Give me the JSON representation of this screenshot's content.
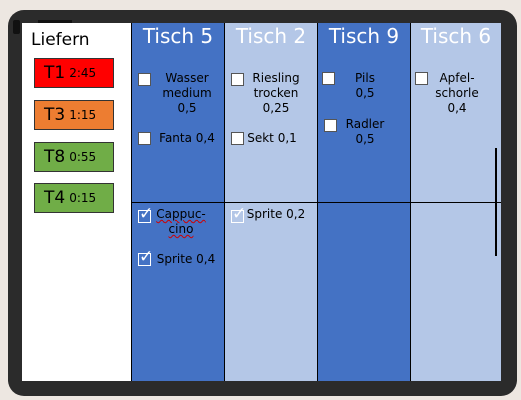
{
  "sidebar": {
    "title": "Liefern",
    "tickets": [
      {
        "table": "T1",
        "time": "2:45",
        "color": "#ff0000"
      },
      {
        "table": "T3",
        "time": "1:15",
        "color": "#ed7d31"
      },
      {
        "table": "T8",
        "time": "0:55",
        "color": "#70ad47"
      },
      {
        "table": "T4",
        "time": "0:15",
        "color": "#70ad47"
      }
    ]
  },
  "tables": [
    {
      "title": "Tisch 5",
      "open_items": [
        {
          "lines": [
            "Wasser",
            "medium",
            "0,5"
          ]
        },
        {
          "lines": [
            "Fanta 0,4"
          ]
        }
      ],
      "done_items": [
        {
          "lines": [
            "Cappuc-",
            "cino"
          ]
        },
        {
          "lines": [
            "Sprite 0,4"
          ]
        }
      ]
    },
    {
      "title": "Tisch 2",
      "open_items": [
        {
          "lines": [
            "Riesling",
            "trocken",
            "0,25"
          ]
        },
        {
          "lines": [
            "Sekt 0,1"
          ]
        }
      ],
      "done_items": [
        {
          "lines": [
            "Sprite 0,2"
          ]
        }
      ]
    },
    {
      "title": "Tisch 9",
      "open_items": [
        {
          "lines": [
            "Pils",
            "0,5"
          ]
        },
        {
          "lines": [
            "Radler",
            "0,5"
          ]
        }
      ],
      "done_items": []
    },
    {
      "title": "Tisch 6",
      "open_items": [
        {
          "lines": [
            "Apfel-",
            "schorle",
            "0,4"
          ]
        }
      ],
      "done_items": []
    }
  ],
  "icons": {
    "checkmark": "✓"
  },
  "colors": {
    "column_dark": "#4472c4",
    "column_light": "#b4c7e7",
    "urgent": "#ff0000",
    "warning": "#ed7d31",
    "ok": "#70ad47"
  }
}
